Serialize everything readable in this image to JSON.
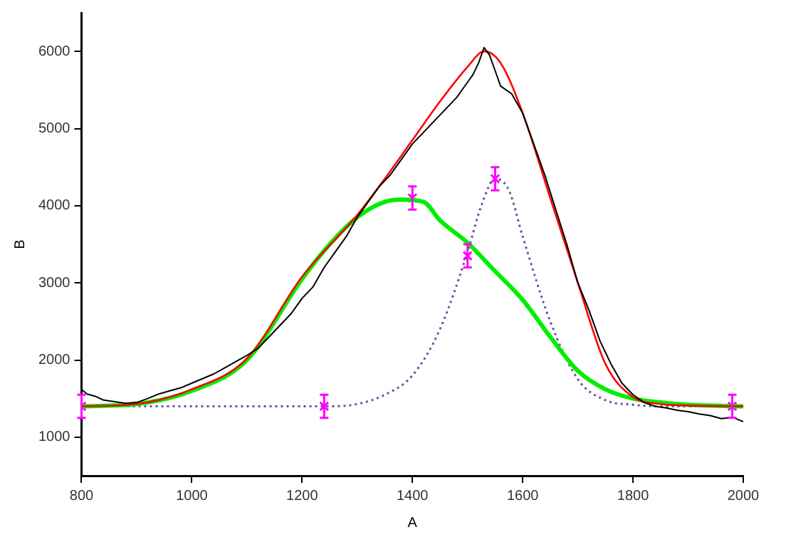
{
  "chart_data": {
    "type": "line",
    "xlabel": "A",
    "ylabel": "B",
    "xlim": [
      800,
      2000
    ],
    "ylim": [
      500,
      6500
    ],
    "xticks": [
      800,
      1000,
      1200,
      1400,
      1600,
      1800,
      2000
    ],
    "yticks": [
      1000,
      2000,
      3000,
      4000,
      5000,
      6000
    ],
    "grid": false,
    "legend": false,
    "marker": "none",
    "series": [
      {
        "color": "#000000",
        "x": [
          800,
          810,
          825,
          840,
          860,
          880,
          900,
          920,
          940,
          960,
          980,
          1000,
          1020,
          1040,
          1060,
          1080,
          1100,
          1120,
          1140,
          1160,
          1180,
          1200,
          1220,
          1240,
          1260,
          1280,
          1300,
          1320,
          1340,
          1360,
          1380,
          1400,
          1420,
          1440,
          1460,
          1480,
          1500,
          1510,
          1520,
          1530,
          1540,
          1550,
          1560,
          1580,
          1600,
          1620,
          1640,
          1660,
          1680,
          1700,
          1720,
          1740,
          1760,
          1780,
          1800,
          1820,
          1840,
          1860,
          1880,
          1900,
          1920,
          1940,
          1960,
          1980,
          2000
        ],
        "values": [
          1620,
          1560,
          1530,
          1480,
          1460,
          1440,
          1450,
          1500,
          1560,
          1600,
          1640,
          1700,
          1760,
          1820,
          1900,
          1980,
          2060,
          2150,
          2300,
          2450,
          2600,
          2800,
          2950,
          3200,
          3400,
          3600,
          3850,
          4050,
          4250,
          4400,
          4600,
          4800,
          4950,
          5100,
          5250,
          5400,
          5600,
          5700,
          5850,
          6050,
          5950,
          5750,
          5550,
          5450,
          5200,
          4800,
          4400,
          3950,
          3500,
          3000,
          2650,
          2250,
          1950,
          1700,
          1550,
          1450,
          1400,
          1380,
          1350,
          1330,
          1300,
          1280,
          1240,
          1260,
          1200
        ]
      },
      {
        "color": "#ff0000",
        "x": [
          800,
          900,
          1000,
          1100,
          1200,
          1300,
          1350,
          1400,
          1450,
          1500,
          1530,
          1560,
          1600,
          1650,
          1700,
          1750,
          1800,
          1850,
          1900,
          2000
        ],
        "values": [
          1400,
          1430,
          1620,
          2020,
          3080,
          3880,
          4350,
          4850,
          5350,
          5800,
          6000,
          5850,
          5200,
          4100,
          3000,
          1950,
          1520,
          1430,
          1410,
          1400
        ]
      },
      {
        "color": "#00ee00",
        "x": [
          800,
          900,
          1000,
          1100,
          1200,
          1250,
          1300,
          1350,
          1380,
          1420,
          1450,
          1500,
          1550,
          1600,
          1650,
          1700,
          1750,
          1800,
          1850,
          1900,
          2000
        ],
        "values": [
          1400,
          1430,
          1600,
          2000,
          3050,
          3500,
          3850,
          4050,
          4080,
          4050,
          3810,
          3520,
          3150,
          2780,
          2300,
          1860,
          1620,
          1500,
          1450,
          1420,
          1400
        ]
      },
      {
        "color": "#7050a0",
        "line_style": "dotted",
        "x": [
          800,
          900,
          1000,
          1100,
          1200,
          1250,
          1300,
          1350,
          1400,
          1450,
          1500,
          1525,
          1550,
          1575,
          1600,
          1650,
          1700,
          1750,
          1800,
          1850,
          1900,
          2000
        ],
        "values": [
          1400,
          1400,
          1400,
          1400,
          1400,
          1400,
          1430,
          1550,
          1800,
          2400,
          3400,
          4000,
          4350,
          4200,
          3600,
          2500,
          1750,
          1480,
          1420,
          1400,
          1400,
          1400
        ]
      },
      {
        "type": "scatter",
        "color": "#ff00ff",
        "marker": "cross",
        "x": [
          800,
          1240,
          1400,
          1500,
          1550,
          1980
        ],
        "values": [
          1400,
          1400,
          4100,
          3350,
          4350,
          1400
        ],
        "errors": [
          150,
          150,
          150,
          150,
          150,
          150
        ]
      }
    ]
  }
}
